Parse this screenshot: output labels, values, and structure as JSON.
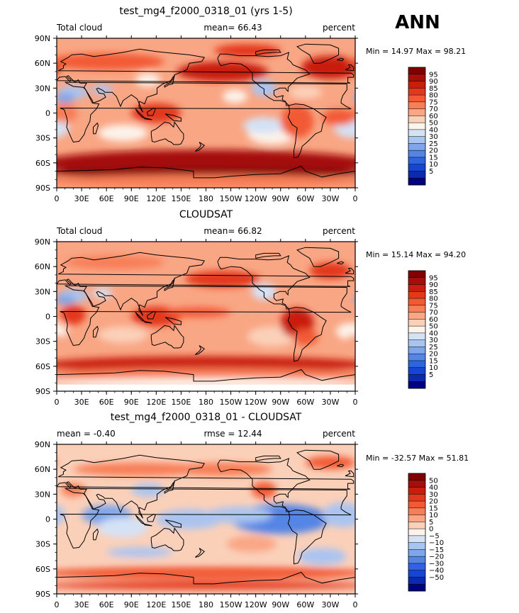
{
  "season": "ANN",
  "chart_data": [
    {
      "type": "heatmap",
      "title": "test_mg4_f2000_0318_01 (yrs 1-5)",
      "left_label": "Total cloud",
      "center_label": "mean=   66.43",
      "right_label": "percent",
      "minmax": "Min =   14.97  Max =   98.21",
      "xlim": [
        0,
        360
      ],
      "ylim": [
        -90,
        90
      ],
      "xtick_labels": [
        "0",
        "30E",
        "60E",
        "90E",
        "120E",
        "150E",
        "180",
        "150W",
        "120W",
        "90W",
        "60W",
        "30W",
        "0"
      ],
      "ytick_labels": [
        "90N",
        "60N",
        "30N",
        "0",
        "30S",
        "60S",
        "90S"
      ],
      "colorbar_levels": [
        "95",
        "90",
        "85",
        "80",
        "75",
        "70",
        "60",
        "50",
        "40",
        "30",
        "25",
        "20",
        "15",
        "10",
        "5"
      ],
      "colorbar_colors": [
        "#800000",
        "#a50f0b",
        "#c91e0c",
        "#e3391a",
        "#f25a35",
        "#f77e57",
        "#f9a684",
        "#fbd0b9",
        "#fdf3ea",
        "#d4e2f6",
        "#aac4f0",
        "#7fa5ea",
        "#5485e5",
        "#2f63e2",
        "#1645d6",
        "#0b2ab0",
        "#000080"
      ]
    },
    {
      "type": "heatmap",
      "title": "CLOUDSAT",
      "left_label": "Total cloud",
      "center_label": "mean=   66.82",
      "right_label": "percent",
      "minmax": "Min =   15.14  Max =   94.20",
      "xlim": [
        0,
        360
      ],
      "ylim": [
        -90,
        90
      ],
      "xtick_labels": [
        "0",
        "30E",
        "60E",
        "90E",
        "120E",
        "150E",
        "180",
        "150W",
        "120W",
        "90W",
        "60W",
        "30W",
        "0"
      ],
      "ytick_labels": [
        "90N",
        "60N",
        "30N",
        "0",
        "30S",
        "60S",
        "90S"
      ],
      "colorbar_levels": [
        "95",
        "90",
        "85",
        "80",
        "75",
        "70",
        "60",
        "50",
        "40",
        "30",
        "25",
        "20",
        "15",
        "10",
        "5"
      ],
      "colorbar_colors": [
        "#800000",
        "#a50f0b",
        "#c91e0c",
        "#e3391a",
        "#f25a35",
        "#f77e57",
        "#f9a684",
        "#fbd0b9",
        "#fdf3ea",
        "#d4e2f6",
        "#aac4f0",
        "#7fa5ea",
        "#5485e5",
        "#2f63e2",
        "#1645d6",
        "#0b2ab0",
        "#000080"
      ]
    },
    {
      "type": "heatmap",
      "title": "test_mg4_f2000_0318_01 - CLOUDSAT",
      "left_label": "mean =   -0.40",
      "center_label": "rmse =   12.44",
      "right_label": "percent",
      "minmax": "Min = -32.57  Max =   51.81",
      "xlim": [
        0,
        360
      ],
      "ylim": [
        -90,
        90
      ],
      "xtick_labels": [
        "0",
        "30E",
        "60E",
        "90E",
        "120E",
        "150E",
        "180",
        "150W",
        "120W",
        "90W",
        "60W",
        "30W",
        "0"
      ],
      "ytick_labels": [
        "90N",
        "60N",
        "30N",
        "0",
        "30S",
        "60S",
        "90S"
      ],
      "colorbar_levels": [
        "50",
        "40",
        "30",
        "20",
        "15",
        "10",
        "5",
        "0",
        "−5",
        "−10",
        "−15",
        "−20",
        "−30",
        "−40",
        "−50"
      ],
      "colorbar_colors": [
        "#800000",
        "#a50f0b",
        "#c91e0c",
        "#e3391a",
        "#f25a35",
        "#f77e57",
        "#f9a684",
        "#fbd0b9",
        "#fdf3ea",
        "#d4e2f6",
        "#aac4f0",
        "#7fa5ea",
        "#5485e5",
        "#2f63e2",
        "#1645d6",
        "#0b2ab0",
        "#000080"
      ]
    }
  ]
}
